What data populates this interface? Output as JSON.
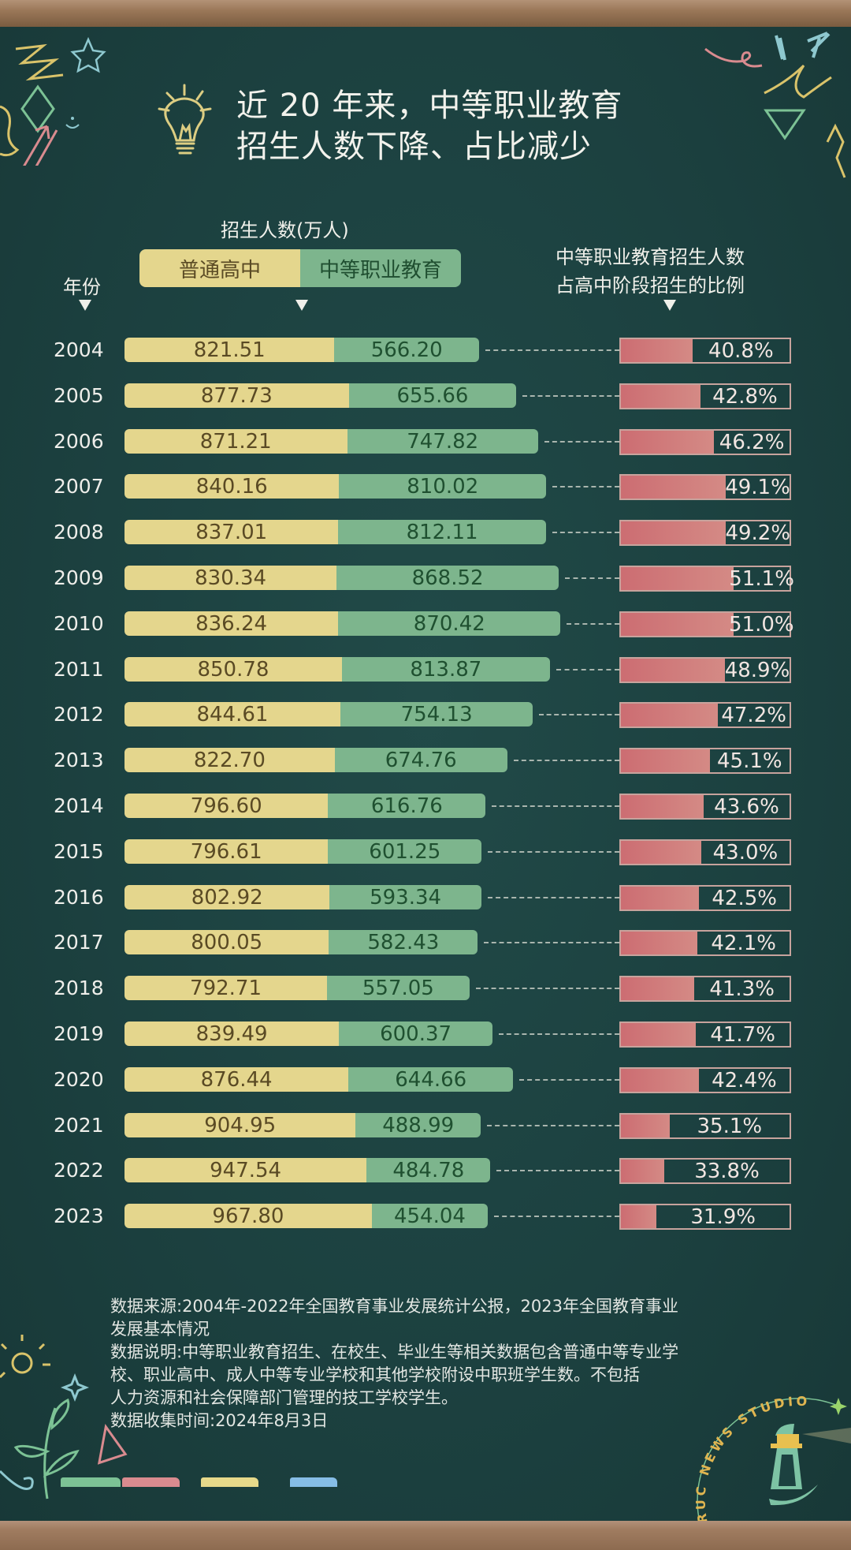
{
  "title": {
    "line1": "近 20 年来，中等职业教育",
    "line2": "招生人数下降、占比减少"
  },
  "headers": {
    "year": "年份",
    "enrollment": "招生人数(万人)",
    "ratio_line1": "中等职业教育招生人数",
    "ratio_line2": "占高中阶段招生的比例"
  },
  "legend": {
    "general": "普通高中",
    "vocational": "中等职业教育"
  },
  "colors": {
    "general": "#e4d68d",
    "vocational": "#7db58d",
    "ratio": "#cc6d72",
    "background": "#1d4444"
  },
  "chart_data": {
    "type": "bar",
    "title": "近 20 年来，中等职业教育招生人数下降、占比减少",
    "xlabel": "招生人数(万人)",
    "ylabel": "年份",
    "stacked": true,
    "orientation": "horizontal",
    "categories": [
      "2004",
      "2005",
      "2006",
      "2007",
      "2008",
      "2009",
      "2010",
      "2011",
      "2012",
      "2013",
      "2014",
      "2015",
      "2016",
      "2017",
      "2018",
      "2019",
      "2020",
      "2021",
      "2022",
      "2023"
    ],
    "series": [
      {
        "name": "普通高中",
        "values": [
          821.51,
          877.73,
          871.21,
          840.16,
          837.01,
          830.34,
          836.24,
          850.78,
          844.61,
          822.7,
          796.6,
          796.61,
          802.92,
          800.05,
          792.71,
          839.49,
          876.44,
          904.95,
          947.54,
          967.8
        ]
      },
      {
        "name": "中等职业教育",
        "values": [
          566.2,
          655.66,
          747.82,
          810.02,
          812.11,
          868.52,
          870.42,
          813.87,
          754.13,
          674.76,
          616.76,
          601.25,
          593.34,
          582.43,
          557.05,
          600.37,
          644.66,
          488.99,
          484.78,
          454.04
        ]
      }
    ],
    "ratio_series": {
      "name": "中等职业教育招生人数占高中阶段招生的比例",
      "unit": "%",
      "values": [
        40.8,
        42.8,
        46.2,
        49.1,
        49.2,
        51.1,
        51.0,
        48.9,
        47.2,
        45.1,
        43.6,
        43.0,
        42.5,
        42.1,
        41.3,
        41.7,
        42.4,
        35.1,
        33.8,
        31.9
      ]
    }
  },
  "notes": {
    "source_line1": "数据来源:2004年-2022年全国教育事业发展统计公报，2023年全国教育事业",
    "source_line2": "发展基本情况",
    "desc_line1": "数据说明:中等职业教育招生、在校生、毕业生等相关数据包含普通中等专业学",
    "desc_line2": "校、职业高中、成人中等专业学校和其他学校附设中职班学生数。不包括",
    "desc_line3": "人力资源和社会保障部门管理的技工学校学生。",
    "date": "数据收集时间:2024年8月3日"
  },
  "logo": {
    "text": "RUC NEWS STUDIO"
  }
}
